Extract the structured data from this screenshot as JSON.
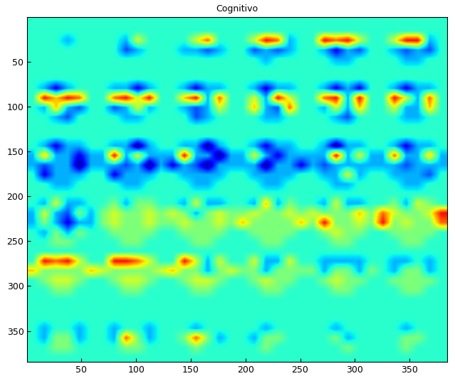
{
  "chart_data": {
    "type": "heatmap",
    "title": "Cognitivo",
    "color": "jet",
    "xlim": [
      0.5,
      384.5
    ],
    "ylim": [
      384.5,
      0.5
    ],
    "xticks": [
      50,
      100,
      150,
      200,
      250,
      300,
      350
    ],
    "yticks": [
      50,
      100,
      150,
      200,
      250,
      300,
      350
    ],
    "color_range": [
      -4,
      6
    ],
    "cells": [
      [
        0,
        0,
        0,
        0,
        0,
        0,
        0,
        0,
        0,
        0,
        0,
        0,
        0,
        0,
        0,
        0,
        0,
        0,
        0,
        0,
        0,
        0,
        0,
        0,
        0,
        0,
        0,
        0,
        0,
        0,
        0,
        0,
        0,
        0,
        0,
        0
      ],
      [
        0,
        0,
        0,
        0,
        0,
        0,
        0,
        0,
        0,
        0,
        0,
        0,
        0,
        0,
        0,
        0,
        0,
        0,
        0,
        0,
        0,
        0,
        0,
        0,
        0,
        0,
        0,
        0,
        0,
        0,
        0,
        0,
        0,
        0,
        0,
        0
      ],
      [
        0,
        0,
        0,
        -1,
        0,
        0,
        0,
        0,
        -1,
        2,
        0,
        0,
        0,
        0,
        2,
        4,
        0,
        0,
        0,
        2,
        5,
        4,
        -1,
        0,
        0,
        5,
        4,
        5,
        2,
        0,
        0,
        2,
        5,
        5,
        -1,
        0
      ],
      [
        0,
        0,
        0,
        0,
        0,
        0,
        0,
        0,
        -2,
        -1,
        0,
        0,
        0,
        -1,
        -1,
        -2,
        -1,
        0,
        0,
        -2,
        -1,
        -2,
        -1,
        0,
        0,
        -1,
        -3,
        -1,
        -2,
        0,
        0,
        -1,
        -2,
        -1,
        -2,
        0
      ],
      [
        0,
        0,
        0,
        0,
        0,
        0,
        0,
        0,
        0,
        0,
        0,
        0,
        0,
        0,
        0,
        0,
        0,
        0,
        0,
        0,
        -1,
        0,
        0,
        0,
        0,
        0,
        -1,
        -1,
        0,
        0,
        0,
        0,
        -1,
        -1,
        0,
        0
      ],
      [
        0,
        0,
        0,
        0,
        0,
        0,
        0,
        0,
        0,
        0,
        0,
        0,
        0,
        0,
        0,
        0,
        0,
        0,
        0,
        0,
        0,
        0,
        0,
        0,
        0,
        0,
        0,
        0,
        0,
        0,
        0,
        0,
        0,
        0,
        0,
        0
      ],
      [
        0,
        0,
        0,
        0,
        0,
        0,
        0,
        0,
        0,
        0,
        0,
        0,
        0,
        0,
        0,
        0,
        0,
        0,
        0,
        0,
        0,
        0,
        0,
        0,
        0,
        0,
        0,
        0,
        0,
        0,
        0,
        0,
        0,
        0,
        0,
        0
      ],
      [
        0,
        -1,
        -3,
        -1,
        0,
        0,
        0,
        -1,
        -1,
        -3,
        -1,
        0,
        0,
        -1,
        -3,
        -1,
        -1,
        0,
        0,
        -1,
        -3,
        -1,
        -1,
        0,
        0,
        -1,
        -3,
        -1,
        -3,
        0,
        0,
        -1,
        -3,
        -1,
        -1,
        0
      ],
      [
        0,
        5,
        3,
        5,
        4,
        0,
        0,
        4,
        5,
        2,
        5,
        0,
        0,
        3,
        5,
        -1,
        4,
        0,
        0,
        2,
        -1,
        5,
        2,
        0,
        0,
        4,
        5,
        -1,
        5,
        0,
        0,
        5,
        2,
        -1,
        4,
        0
      ],
      [
        0,
        -1,
        3,
        -1,
        -2,
        0,
        0,
        -2,
        -1,
        2,
        -1,
        0,
        0,
        -1,
        -2,
        -1,
        2,
        0,
        0,
        3,
        -1,
        -2,
        4,
        0,
        0,
        -1,
        2,
        -1,
        3,
        0,
        0,
        2,
        -1,
        -1,
        3,
        0
      ],
      [
        0,
        0,
        -1,
        -2,
        0,
        0,
        0,
        0,
        -1,
        -1,
        0,
        0,
        0,
        0,
        -2,
        -1,
        0,
        0,
        0,
        0,
        -1,
        -1,
        0,
        0,
        0,
        0,
        -1,
        -2,
        0,
        0,
        0,
        0,
        -1,
        -1,
        0,
        0
      ],
      [
        0,
        0,
        0,
        0,
        0,
        0,
        0,
        0,
        0,
        0,
        0,
        0,
        0,
        0,
        0,
        0,
        0,
        0,
        0,
        0,
        0,
        0,
        0,
        0,
        0,
        0,
        0,
        0,
        0,
        0,
        0,
        0,
        0,
        0,
        0,
        0
      ],
      [
        0,
        0,
        0,
        0,
        0,
        0,
        0,
        0,
        0,
        0,
        0,
        0,
        0,
        0,
        0,
        0,
        0,
        0,
        0,
        0,
        0,
        0,
        0,
        0,
        0,
        0,
        0,
        0,
        0,
        0,
        0,
        0,
        0,
        0,
        0,
        0
      ],
      [
        0,
        -1,
        -3,
        -1,
        -1,
        0,
        0,
        -1,
        -1,
        -4,
        -1,
        0,
        0,
        -1,
        -1,
        -4,
        -1,
        0,
        0,
        -1,
        -3,
        -1,
        -1,
        0,
        0,
        -1,
        -4,
        -1,
        -1,
        0,
        0,
        -1,
        -3,
        -1,
        -1,
        0
      ],
      [
        -1,
        3,
        -1,
        -1,
        -3,
        -1,
        -1,
        5,
        -1,
        2,
        -1,
        -1,
        -1,
        5,
        -1,
        -1,
        -4,
        -1,
        -1,
        2,
        -1,
        -3,
        -1,
        -1,
        -1,
        -1,
        5,
        -1,
        2,
        -1,
        -1,
        4,
        -1,
        -1,
        3,
        -1
      ],
      [
        -1,
        -2,
        -1,
        -1,
        -4,
        -1,
        -1,
        -1,
        -2,
        -1,
        -4,
        -1,
        -3,
        -1,
        -2,
        -4,
        -1,
        -1,
        -1,
        -1,
        -4,
        -1,
        -1,
        -3,
        -1,
        -2,
        -1,
        -1,
        -1,
        -1,
        -1,
        -1,
        -2,
        -1,
        -1,
        -1
      ],
      [
        0,
        -3,
        -1,
        -1,
        -1,
        0,
        0,
        -3,
        -1,
        -1,
        -1,
        0,
        0,
        -1,
        -1,
        -1,
        -1,
        0,
        0,
        -1,
        -1,
        -1,
        -1,
        0,
        0,
        -1,
        -1,
        2,
        -1,
        0,
        0,
        -1,
        -1,
        -1,
        -2,
        0
      ],
      [
        0,
        0,
        -1,
        -1,
        0,
        0,
        0,
        0,
        -1,
        -1,
        0,
        0,
        0,
        0,
        -1,
        -1,
        0,
        0,
        0,
        0,
        -1,
        -1,
        0,
        0,
        0,
        0,
        -1,
        -1,
        0,
        0,
        0,
        0,
        -1,
        -1,
        0,
        0
      ],
      [
        0,
        0,
        0,
        0,
        0,
        0,
        0,
        0,
        0,
        0,
        0,
        0,
        0,
        0,
        0,
        0,
        0,
        0,
        0,
        0,
        0,
        0,
        0,
        0,
        0,
        0,
        0,
        0,
        0,
        0,
        0,
        0,
        0,
        0,
        0,
        0
      ],
      [
        0,
        -1,
        2,
        -1,
        -1,
        0,
        0,
        1,
        -1,
        1,
        1,
        0,
        0,
        -1,
        2,
        -1,
        -1,
        0,
        0,
        -1,
        3,
        -1,
        1,
        0,
        0,
        -1,
        2,
        -1,
        -1,
        0,
        0,
        1,
        -1,
        2,
        1,
        0
      ],
      [
        -1,
        2,
        -1,
        -2,
        1,
        -1,
        1,
        2,
        1,
        1,
        2,
        1,
        2,
        1,
        -1,
        1,
        2,
        1,
        1,
        2,
        1,
        1,
        2,
        1,
        2,
        1,
        1,
        1,
        3,
        1,
        4,
        2,
        1,
        1,
        2,
        5
      ],
      [
        -1,
        1,
        -1,
        -3,
        -1,
        -1,
        1,
        2,
        1,
        1,
        2,
        1,
        1,
        2,
        1,
        1,
        2,
        1,
        3,
        1,
        1,
        1,
        1,
        3,
        1,
        5,
        1,
        1,
        2,
        1,
        5,
        1,
        2,
        1,
        1,
        4
      ],
      [
        0,
        -1,
        1,
        -1,
        1,
        0,
        0,
        1,
        1,
        1,
        1,
        0,
        0,
        1,
        1,
        1,
        1,
        0,
        0,
        1,
        1,
        1,
        1,
        0,
        0,
        1,
        2,
        1,
        1,
        0,
        0,
        1,
        1,
        1,
        1,
        0
      ],
      [
        0,
        0,
        1,
        1,
        0,
        0,
        0,
        0,
        1,
        1,
        0,
        0,
        0,
        0,
        1,
        1,
        0,
        0,
        0,
        0,
        1,
        1,
        0,
        0,
        0,
        0,
        1,
        1,
        0,
        0,
        0,
        0,
        1,
        1,
        0,
        0
      ],
      [
        0,
        0,
        0,
        0,
        0,
        0,
        0,
        0,
        0,
        0,
        0,
        0,
        0,
        0,
        0,
        0,
        0,
        0,
        0,
        0,
        0,
        0,
        0,
        0,
        0,
        0,
        0,
        0,
        0,
        0,
        0,
        0,
        0,
        0,
        0,
        0
      ],
      [
        0,
        5,
        4,
        5,
        2,
        0,
        0,
        5,
        5,
        4,
        2,
        0,
        0,
        5,
        2,
        -1,
        2,
        0,
        0,
        2,
        -1,
        -1,
        2,
        0,
        0,
        -1,
        -1,
        -1,
        -1,
        0,
        0,
        -1,
        -1,
        0,
        -1,
        0
      ],
      [
        3,
        1,
        1,
        1,
        1,
        3,
        2,
        1,
        1,
        1,
        1,
        2,
        3,
        1,
        1,
        -1,
        1,
        2,
        1,
        1,
        -1,
        1,
        1,
        1,
        1,
        -1,
        1,
        1,
        -1,
        1,
        0,
        -1,
        1,
        1,
        -1,
        0
      ],
      [
        0,
        1,
        2,
        2,
        1,
        0,
        0,
        1,
        2,
        2,
        1,
        0,
        0,
        1,
        2,
        2,
        1,
        0,
        0,
        1,
        2,
        1,
        1,
        0,
        0,
        1,
        2,
        1,
        1,
        0,
        0,
        1,
        1,
        1,
        1,
        0
      ],
      [
        0,
        0,
        1,
        1,
        0,
        0,
        0,
        0,
        1,
        1,
        0,
        0,
        0,
        0,
        1,
        1,
        0,
        0,
        0,
        0,
        1,
        1,
        0,
        0,
        0,
        0,
        1,
        1,
        0,
        0,
        0,
        0,
        1,
        1,
        0,
        0
      ],
      [
        0,
        0,
        0,
        0,
        0,
        0,
        0,
        0,
        0,
        0,
        0,
        0,
        0,
        0,
        0,
        0,
        0,
        0,
        0,
        0,
        0,
        0,
        0,
        0,
        0,
        0,
        0,
        0,
        0,
        0,
        0,
        0,
        0,
        0,
        0,
        0
      ],
      [
        0,
        0,
        0,
        0,
        0,
        0,
        0,
        0,
        0,
        0,
        0,
        0,
        0,
        0,
        0,
        0,
        0,
        0,
        0,
        0,
        0,
        0,
        0,
        0,
        0,
        0,
        0,
        0,
        0,
        0,
        0,
        0,
        0,
        0,
        0,
        0
      ],
      [
        0,
        0,
        0,
        0,
        0,
        0,
        0,
        0,
        0,
        0,
        0,
        0,
        0,
        0,
        0,
        0,
        0,
        0,
        0,
        0,
        0,
        0,
        0,
        0,
        0,
        0,
        0,
        0,
        0,
        0,
        0,
        0,
        0,
        0,
        0,
        0
      ],
      [
        0,
        -1,
        0,
        0,
        -1,
        0,
        0,
        -1,
        0,
        0,
        -1,
        0,
        0,
        0,
        -1,
        0,
        0,
        0,
        0,
        0,
        -1,
        0,
        0,
        0,
        0,
        0,
        -1,
        0,
        0,
        0,
        0,
        0,
        -1,
        0,
        0,
        0
      ],
      [
        0,
        -1,
        1,
        1,
        -1,
        0,
        0,
        -1,
        4,
        1,
        -1,
        0,
        0,
        1,
        4,
        1,
        -1,
        0,
        0,
        -1,
        1,
        1,
        0,
        0,
        0,
        0,
        1,
        -1,
        0,
        0,
        0,
        0,
        1,
        1,
        0,
        0
      ],
      [
        0,
        0,
        1,
        1,
        0,
        0,
        0,
        0,
        1,
        1,
        0,
        0,
        0,
        0,
        1,
        0,
        0,
        0,
        0,
        0,
        1,
        0,
        0,
        0,
        0,
        0,
        0,
        1,
        0,
        0,
        0,
        0,
        1,
        0,
        0,
        0
      ],
      [
        0,
        0,
        0,
        0,
        0,
        0,
        0,
        0,
        0,
        0,
        0,
        0,
        0,
        0,
        0,
        0,
        0,
        0,
        0,
        0,
        0,
        0,
        0,
        0,
        0,
        0,
        0,
        0,
        0,
        0,
        0,
        0,
        0,
        0,
        0,
        0
      ]
    ]
  }
}
